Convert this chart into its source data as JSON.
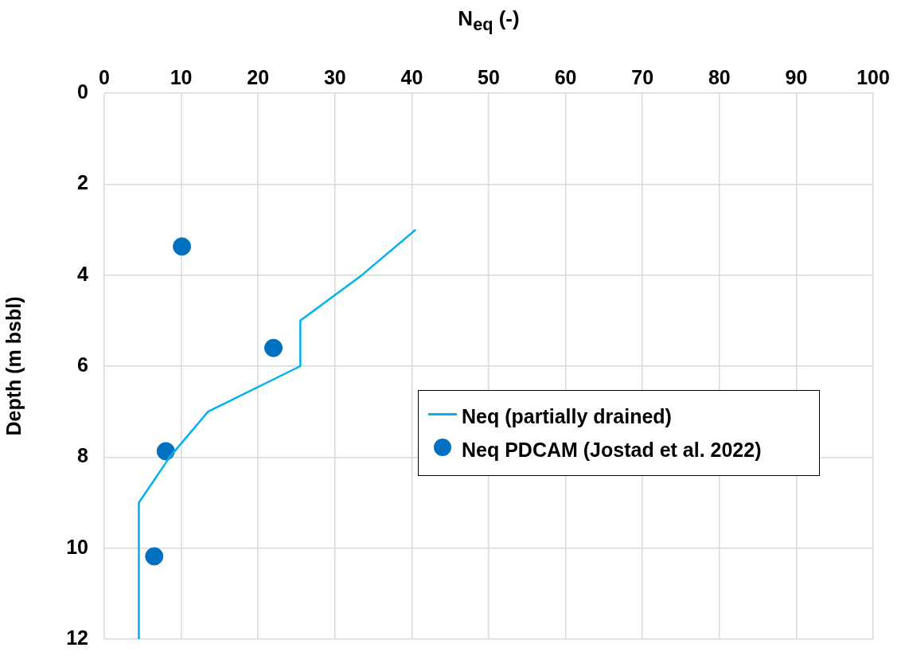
{
  "chart_data": {
    "type": "line",
    "xlabel": "N$_{eq}$ (-)",
    "ylabel": "Depth (m bsbl)",
    "xlim": [
      0,
      100
    ],
    "xticks": [
      0,
      10,
      20,
      30,
      40,
      50,
      60,
      70,
      80,
      90,
      100
    ],
    "ylim": [
      12,
      0
    ],
    "yticks": [
      0,
      2,
      4,
      6,
      8,
      10,
      12
    ],
    "grid": true,
    "legend": "right",
    "series": [
      {
        "name": "Neq (partially drained)",
        "type": "line",
        "color": "#00b0f0",
        "marker": "none",
        "x": [
          40.5,
          33.5,
          25.5,
          25.5,
          13.5,
          8.5,
          4.5,
          4.5
        ],
        "values": [
          3,
          4,
          5,
          6,
          7,
          8,
          9,
          12
        ]
      },
      {
        "name": "Neq PDCAM (Jostad et al. 2022)",
        "type": "scatter",
        "color": "#0070c0",
        "marker": "circle",
        "x": [
          10.1,
          22,
          8,
          6.5
        ],
        "values": [
          3.37,
          5.6,
          7.87,
          10.18
        ]
      }
    ]
  }
}
